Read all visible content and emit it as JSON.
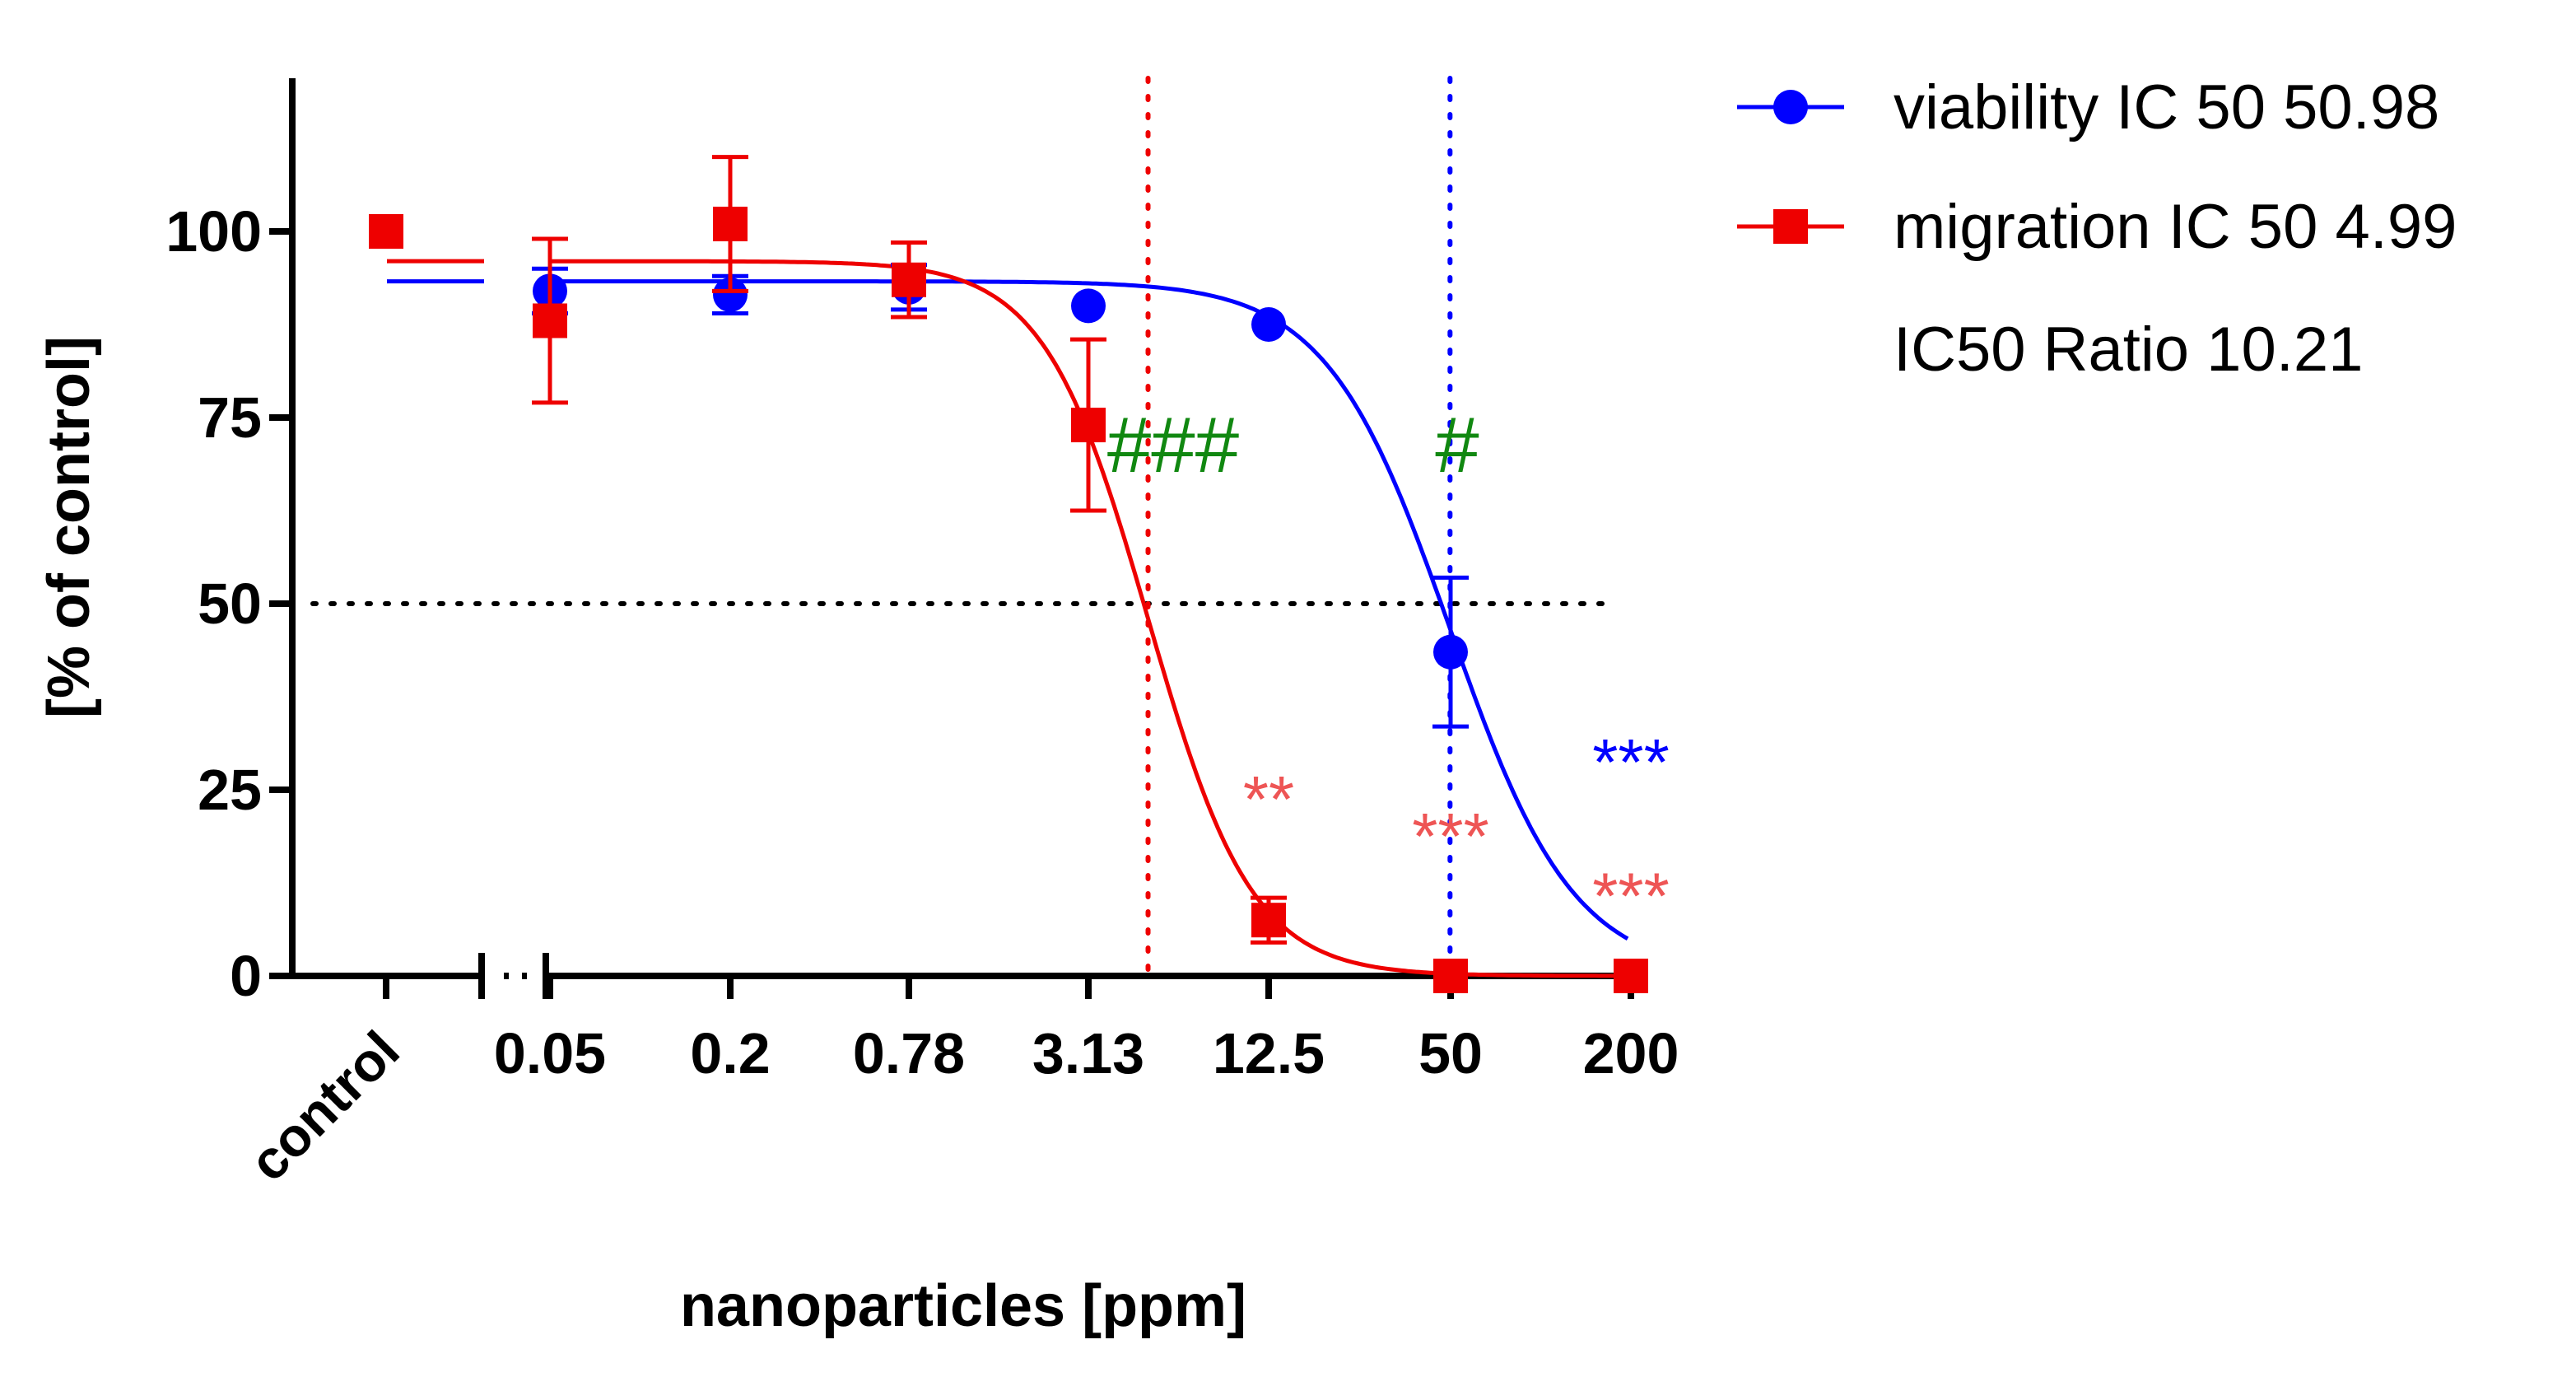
{
  "chart_data": {
    "type": "scatter",
    "title": "",
    "xlabel": "nanoparticles [ppm]",
    "ylabel": "[% of control]",
    "x_categories": [
      "control",
      "0.05",
      "0.2",
      "0.78",
      "3.13",
      "12.5",
      "50",
      "200"
    ],
    "x_scale": "log",
    "y_ticks": [
      0,
      25,
      50,
      75,
      100
    ],
    "ylim": [
      0,
      120
    ],
    "reference_line_y": 50,
    "legend_placement": "top-right",
    "series": [
      {
        "name": "viability IC 50 50.98",
        "color": "#0000ff",
        "marker": "circle",
        "ic50": 50.98,
        "points": [
          {
            "x": "control",
            "y": 100,
            "err": 0
          },
          {
            "x": "0.05",
            "y": 92,
            "err": 3
          },
          {
            "x": "0.2",
            "y": 91.5,
            "err": 2.5
          },
          {
            "x": "0.78",
            "y": 92.5,
            "err": 3
          },
          {
            "x": "3.13",
            "y": 90,
            "err": 0
          },
          {
            "x": "12.5",
            "y": 87.5,
            "err": 0
          },
          {
            "x": "50",
            "y": 43.5,
            "err": 10
          },
          {
            "x": "200",
            "y": 0,
            "err": 0
          }
        ],
        "control_line": 93.3
      },
      {
        "name": "migration IC 50 4.99",
        "color": "#ee0000",
        "marker": "square",
        "ic50": 4.99,
        "points": [
          {
            "x": "control",
            "y": 100,
            "err": 0
          },
          {
            "x": "0.05",
            "y": 88,
            "err": 11
          },
          {
            "x": "0.2",
            "y": 101,
            "err": 9
          },
          {
            "x": "0.78",
            "y": 93.5,
            "err": 5
          },
          {
            "x": "3.13",
            "y": 74,
            "err": 11.5
          },
          {
            "x": "12.5",
            "y": 7.5,
            "err": 3
          },
          {
            "x": "50",
            "y": 0,
            "err": 0
          },
          {
            "x": "200",
            "y": 0,
            "err": 0
          }
        ],
        "control_line": 96
      }
    ],
    "legend_extra": "IC50 Ratio 10.21",
    "annotations": [
      {
        "text": "###",
        "color": "#118811",
        "x": "12.5",
        "y": 71
      },
      {
        "text": "#",
        "color": "#118811",
        "x": "50",
        "y": 71
      },
      {
        "text": "**",
        "color": "#ee5555",
        "x": "12.5",
        "y": 24
      },
      {
        "text": "***",
        "color": "#ee5555",
        "x": "50",
        "y": 19
      },
      {
        "text": "***",
        "color": "#0000ff",
        "x": "200",
        "y": 29
      },
      {
        "text": "***",
        "color": "#ee5555",
        "x": "200",
        "y": 11
      }
    ]
  }
}
